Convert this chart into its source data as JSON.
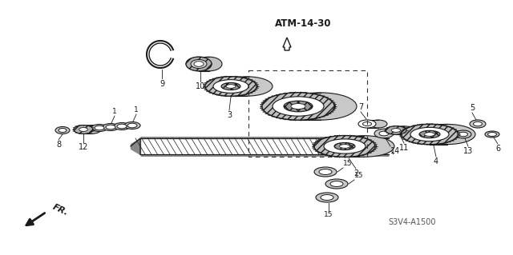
{
  "bg_color": "#ffffff",
  "line_color": "#1a1a1a",
  "hatch_color": "#1a1a1a",
  "fill_white": "#ffffff",
  "fill_light_gray": "#d8d8d8",
  "fill_mid_gray": "#b0b0b0",
  "fill_dark_gray": "#707070",
  "atm_label": "ATM-14-30",
  "fr_label": "FR.",
  "s3v4_label": "S3V4-A1500",
  "lw": 0.9
}
